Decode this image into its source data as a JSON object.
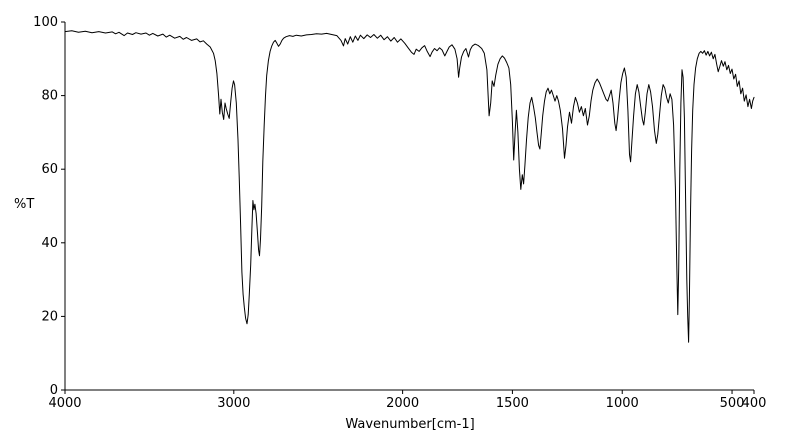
{
  "window": {
    "background": "#ffffff"
  },
  "chart_data": {
    "type": "line",
    "title": "",
    "xlabel": "Wavenumber[cm-1]",
    "ylabel": "%T",
    "x_ticks": [
      4000,
      3000,
      2000,
      1500,
      1000,
      500,
      400
    ],
    "y_ticks": [
      0,
      20,
      40,
      60,
      80,
      100
    ],
    "xlim": [
      4000,
      400
    ],
    "ylim": [
      0,
      100
    ],
    "x_axis_reversed": true,
    "x_scale_breaks": [
      [
        4000,
        0.0
      ],
      [
        2000,
        0.49
      ],
      [
        400,
        1.0
      ]
    ],
    "grid": false,
    "legend": "none",
    "line_color": "#000000",
    "axis_color": "#000000",
    "background": "#ffffff",
    "series": [
      {
        "name": "transmittance",
        "points": [
          [
            4000,
            97.4
          ],
          [
            3960,
            97.6
          ],
          [
            3920,
            97.2
          ],
          [
            3880,
            97.5
          ],
          [
            3840,
            97.1
          ],
          [
            3800,
            97.4
          ],
          [
            3760,
            97.0
          ],
          [
            3720,
            97.3
          ],
          [
            3700,
            96.8
          ],
          [
            3680,
            97.2
          ],
          [
            3650,
            96.3
          ],
          [
            3630,
            97.0
          ],
          [
            3600,
            96.6
          ],
          [
            3580,
            97.1
          ],
          [
            3550,
            96.7
          ],
          [
            3520,
            97.0
          ],
          [
            3500,
            96.4
          ],
          [
            3480,
            96.9
          ],
          [
            3450,
            96.2
          ],
          [
            3420,
            96.7
          ],
          [
            3400,
            95.9
          ],
          [
            3380,
            96.4
          ],
          [
            3350,
            95.6
          ],
          [
            3320,
            96.1
          ],
          [
            3300,
            95.3
          ],
          [
            3280,
            95.8
          ],
          [
            3250,
            95.0
          ],
          [
            3220,
            95.4
          ],
          [
            3200,
            94.6
          ],
          [
            3180,
            94.9
          ],
          [
            3160,
            94.0
          ],
          [
            3140,
            93.2
          ],
          [
            3120,
            91.5
          ],
          [
            3110,
            89.5
          ],
          [
            3100,
            86.0
          ],
          [
            3090,
            80.0
          ],
          [
            3083,
            75.0
          ],
          [
            3076,
            79.0
          ],
          [
            3068,
            75.5
          ],
          [
            3060,
            73.5
          ],
          [
            3052,
            78.0
          ],
          [
            3045,
            76.5
          ],
          [
            3036,
            75.0
          ],
          [
            3027,
            73.8
          ],
          [
            3018,
            78.5
          ],
          [
            3010,
            82.0
          ],
          [
            3002,
            84.0
          ],
          [
            2995,
            83.0
          ],
          [
            2985,
            78.0
          ],
          [
            2975,
            68.0
          ],
          [
            2968,
            58.0
          ],
          [
            2960,
            45.0
          ],
          [
            2952,
            32.0
          ],
          [
            2945,
            26.0
          ],
          [
            2938,
            22.5
          ],
          [
            2930,
            19.5
          ],
          [
            2922,
            18.0
          ],
          [
            2915,
            20.5
          ],
          [
            2908,
            26.0
          ],
          [
            2900,
            34.0
          ],
          [
            2893,
            44.0
          ],
          [
            2887,
            51.5
          ],
          [
            2881,
            49.0
          ],
          [
            2875,
            50.5
          ],
          [
            2868,
            48.0
          ],
          [
            2860,
            43.0
          ],
          [
            2853,
            38.0
          ],
          [
            2848,
            36.5
          ],
          [
            2842,
            41.0
          ],
          [
            2835,
            50.0
          ],
          [
            2828,
            62.0
          ],
          [
            2820,
            72.0
          ],
          [
            2812,
            80.0
          ],
          [
            2805,
            85.5
          ],
          [
            2795,
            89.5
          ],
          [
            2785,
            92.0
          ],
          [
            2775,
            93.5
          ],
          [
            2765,
            94.5
          ],
          [
            2755,
            95.0
          ],
          [
            2745,
            94.2
          ],
          [
            2735,
            93.4
          ],
          [
            2725,
            94.0
          ],
          [
            2715,
            95.0
          ],
          [
            2705,
            95.6
          ],
          [
            2690,
            96.0
          ],
          [
            2670,
            96.3
          ],
          [
            2650,
            96.1
          ],
          [
            2630,
            96.4
          ],
          [
            2600,
            96.2
          ],
          [
            2570,
            96.5
          ],
          [
            2540,
            96.6
          ],
          [
            2510,
            96.8
          ],
          [
            2480,
            96.7
          ],
          [
            2450,
            96.9
          ],
          [
            2420,
            96.6
          ],
          [
            2390,
            96.3
          ],
          [
            2365,
            95.0
          ],
          [
            2350,
            93.5
          ],
          [
            2340,
            95.5
          ],
          [
            2325,
            94.0
          ],
          [
            2310,
            96.0
          ],
          [
            2295,
            94.5
          ],
          [
            2280,
            96.2
          ],
          [
            2265,
            95.0
          ],
          [
            2250,
            96.4
          ],
          [
            2230,
            95.5
          ],
          [
            2210,
            96.5
          ],
          [
            2190,
            95.8
          ],
          [
            2170,
            96.6
          ],
          [
            2150,
            95.6
          ],
          [
            2130,
            96.4
          ],
          [
            2110,
            95.2
          ],
          [
            2090,
            96.0
          ],
          [
            2070,
            94.8
          ],
          [
            2050,
            95.8
          ],
          [
            2030,
            94.5
          ],
          [
            2010,
            95.4
          ],
          [
            1990,
            94.2
          ],
          [
            1975,
            93.0
          ],
          [
            1960,
            91.8
          ],
          [
            1948,
            91.2
          ],
          [
            1938,
            92.6
          ],
          [
            1925,
            92.0
          ],
          [
            1912,
            93.0
          ],
          [
            1900,
            93.6
          ],
          [
            1888,
            92.0
          ],
          [
            1875,
            90.6
          ],
          [
            1866,
            91.8
          ],
          [
            1855,
            92.8
          ],
          [
            1843,
            92.2
          ],
          [
            1832,
            93.0
          ],
          [
            1820,
            92.4
          ],
          [
            1808,
            90.8
          ],
          [
            1798,
            92.0
          ],
          [
            1788,
            93.2
          ],
          [
            1775,
            93.8
          ],
          [
            1762,
            92.6
          ],
          [
            1752,
            90.0
          ],
          [
            1745,
            85.0
          ],
          [
            1740,
            87.5
          ],
          [
            1732,
            90.5
          ],
          [
            1722,
            92.0
          ],
          [
            1712,
            92.8
          ],
          [
            1700,
            90.5
          ],
          [
            1692,
            92.5
          ],
          [
            1682,
            93.5
          ],
          [
            1670,
            94.0
          ],
          [
            1655,
            93.6
          ],
          [
            1640,
            92.8
          ],
          [
            1628,
            91.5
          ],
          [
            1616,
            87.0
          ],
          [
            1606,
            74.5
          ],
          [
            1599,
            78.0
          ],
          [
            1592,
            84.0
          ],
          [
            1584,
            82.5
          ],
          [
            1576,
            85.5
          ],
          [
            1566,
            88.5
          ],
          [
            1556,
            90.0
          ],
          [
            1546,
            90.8
          ],
          [
            1536,
            90.2
          ],
          [
            1526,
            89.0
          ],
          [
            1516,
            87.5
          ],
          [
            1508,
            83.0
          ],
          [
            1500,
            73.0
          ],
          [
            1494,
            62.5
          ],
          [
            1488,
            70.0
          ],
          [
            1482,
            76.0
          ],
          [
            1475,
            70.0
          ],
          [
            1468,
            60.0
          ],
          [
            1462,
            54.5
          ],
          [
            1455,
            58.5
          ],
          [
            1449,
            56.0
          ],
          [
            1443,
            61.0
          ],
          [
            1436,
            68.0
          ],
          [
            1428,
            74.0
          ],
          [
            1420,
            78.0
          ],
          [
            1412,
            79.5
          ],
          [
            1404,
            77.0
          ],
          [
            1396,
            74.0
          ],
          [
            1388,
            70.0
          ],
          [
            1381,
            66.5
          ],
          [
            1375,
            65.5
          ],
          [
            1369,
            69.5
          ],
          [
            1362,
            74.5
          ],
          [
            1354,
            78.5
          ],
          [
            1346,
            81.0
          ],
          [
            1338,
            82.0
          ],
          [
            1330,
            80.5
          ],
          [
            1322,
            81.5
          ],
          [
            1314,
            80.0
          ],
          [
            1306,
            78.5
          ],
          [
            1298,
            80.0
          ],
          [
            1290,
            78.5
          ],
          [
            1282,
            76.0
          ],
          [
            1272,
            71.0
          ],
          [
            1263,
            63.0
          ],
          [
            1256,
            66.5
          ],
          [
            1249,
            71.5
          ],
          [
            1240,
            75.5
          ],
          [
            1231,
            72.5
          ],
          [
            1222,
            77.0
          ],
          [
            1213,
            79.5
          ],
          [
            1204,
            78.0
          ],
          [
            1195,
            75.5
          ],
          [
            1186,
            77.0
          ],
          [
            1177,
            74.5
          ],
          [
            1168,
            76.5
          ],
          [
            1158,
            72.0
          ],
          [
            1150,
            74.5
          ],
          [
            1142,
            78.5
          ],
          [
            1134,
            81.5
          ],
          [
            1124,
            83.5
          ],
          [
            1114,
            84.5
          ],
          [
            1104,
            83.5
          ],
          [
            1094,
            82.0
          ],
          [
            1084,
            80.5
          ],
          [
            1074,
            79.0
          ],
          [
            1066,
            78.5
          ],
          [
            1058,
            80.0
          ],
          [
            1050,
            81.5
          ],
          [
            1042,
            78.0
          ],
          [
            1034,
            72.5
          ],
          [
            1028,
            70.5
          ],
          [
            1021,
            74.0
          ],
          [
            1014,
            79.0
          ],
          [
            1006,
            83.5
          ],
          [
            998,
            86.0
          ],
          [
            990,
            87.5
          ],
          [
            982,
            85.0
          ],
          [
            974,
            76.0
          ],
          [
            967,
            64.0
          ],
          [
            962,
            62.0
          ],
          [
            956,
            67.5
          ],
          [
            948,
            74.5
          ],
          [
            940,
            80.5
          ],
          [
            932,
            83.0
          ],
          [
            924,
            81.0
          ],
          [
            916,
            77.0
          ],
          [
            908,
            73.5
          ],
          [
            902,
            72.0
          ],
          [
            895,
            75.5
          ],
          [
            887,
            80.5
          ],
          [
            879,
            83.0
          ],
          [
            871,
            81.0
          ],
          [
            862,
            77.0
          ],
          [
            853,
            70.5
          ],
          [
            845,
            67.0
          ],
          [
            838,
            69.5
          ],
          [
            830,
            75.0
          ],
          [
            822,
            80.0
          ],
          [
            814,
            83.0
          ],
          [
            806,
            82.0
          ],
          [
            798,
            79.5
          ],
          [
            790,
            78.0
          ],
          [
            782,
            80.5
          ],
          [
            774,
            79.0
          ],
          [
            766,
            72.0
          ],
          [
            758,
            55.0
          ],
          [
            752,
            35.0
          ],
          [
            747,
            20.5
          ],
          [
            743,
            33.0
          ],
          [
            738,
            60.0
          ],
          [
            733,
            78.0
          ],
          [
            728,
            87.0
          ],
          [
            723,
            85.0
          ],
          [
            717,
            74.0
          ],
          [
            711,
            50.0
          ],
          [
            706,
            30.0
          ],
          [
            702,
            20.0
          ],
          [
            698,
            13.0
          ],
          [
            694,
            25.0
          ],
          [
            689,
            48.0
          ],
          [
            684,
            65.0
          ],
          [
            679,
            76.0
          ],
          [
            673,
            83.0
          ],
          [
            666,
            87.5
          ],
          [
            658,
            90.0
          ],
          [
            650,
            91.5
          ],
          [
            642,
            92.0
          ],
          [
            634,
            91.5
          ],
          [
            626,
            92.2
          ],
          [
            618,
            91.0
          ],
          [
            610,
            92.0
          ],
          [
            602,
            90.8
          ],
          [
            594,
            91.8
          ],
          [
            586,
            90.0
          ],
          [
            578,
            91.2
          ],
          [
            570,
            88.5
          ],
          [
            563,
            86.5
          ],
          [
            556,
            87.8
          ],
          [
            548,
            89.5
          ],
          [
            540,
            88.0
          ],
          [
            532,
            89.2
          ],
          [
            524,
            87.0
          ],
          [
            516,
            88.2
          ],
          [
            508,
            86.0
          ],
          [
            500,
            87.2
          ],
          [
            492,
            84.5
          ],
          [
            484,
            85.8
          ],
          [
            476,
            82.5
          ],
          [
            468,
            84.0
          ],
          [
            460,
            80.5
          ],
          [
            452,
            82.0
          ],
          [
            444,
            78.5
          ],
          [
            436,
            80.2
          ],
          [
            428,
            77.0
          ],
          [
            420,
            79.0
          ],
          [
            412,
            76.5
          ],
          [
            406,
            78.5
          ],
          [
            400,
            79.5
          ]
        ]
      }
    ]
  }
}
